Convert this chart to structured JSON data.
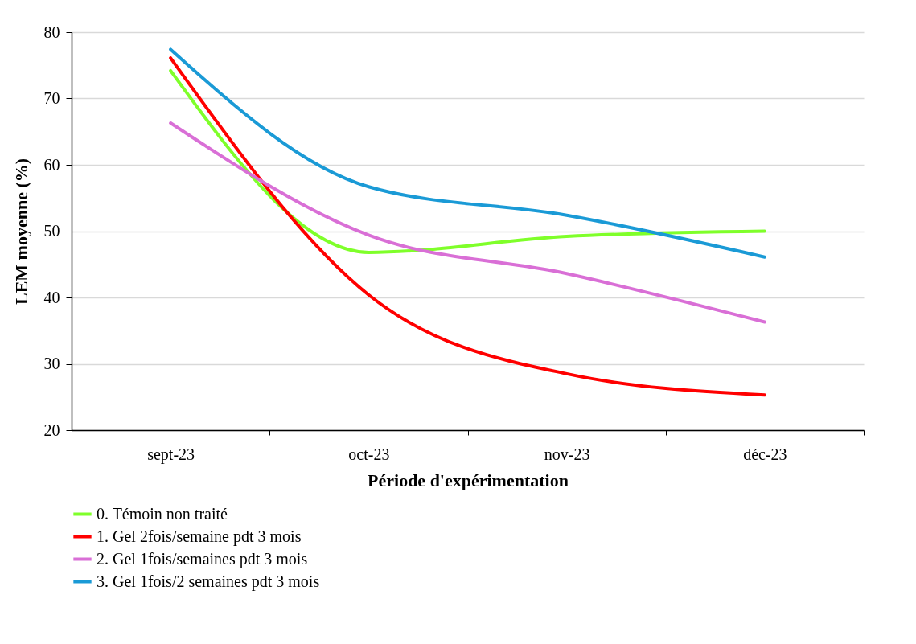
{
  "chart_data": {
    "type": "line",
    "xlabel": "Période d'expérimentation",
    "ylabel": "LEM moyenne (%)",
    "categories": [
      "sept-23",
      "oct-23",
      "nov-23",
      "déc-23"
    ],
    "series": [
      {
        "name": "0. Témoin non traité",
        "color": "#7fff2a",
        "values": [
          74.2,
          46.8,
          49.2,
          50.0
        ]
      },
      {
        "name": "1. Gel 2fois/semaine pdt 3 mois",
        "color": "#ff0000",
        "values": [
          76.1,
          40.4,
          28.5,
          25.3
        ]
      },
      {
        "name": "2. Gel 1fois/semaines pdt 3 mois",
        "color": "#d96fd6",
        "values": [
          66.3,
          49.4,
          43.6,
          36.3
        ]
      },
      {
        "name": "3. Gel 1fois/2 semaines pdt 3 mois",
        "color": "#1a9ad6",
        "values": [
          77.4,
          56.7,
          52.4,
          46.1
        ]
      }
    ],
    "ylim": [
      20,
      80
    ],
    "yticks": [
      20,
      30,
      40,
      50,
      60,
      70,
      80
    ],
    "grid": "y",
    "legend": "bottom"
  }
}
